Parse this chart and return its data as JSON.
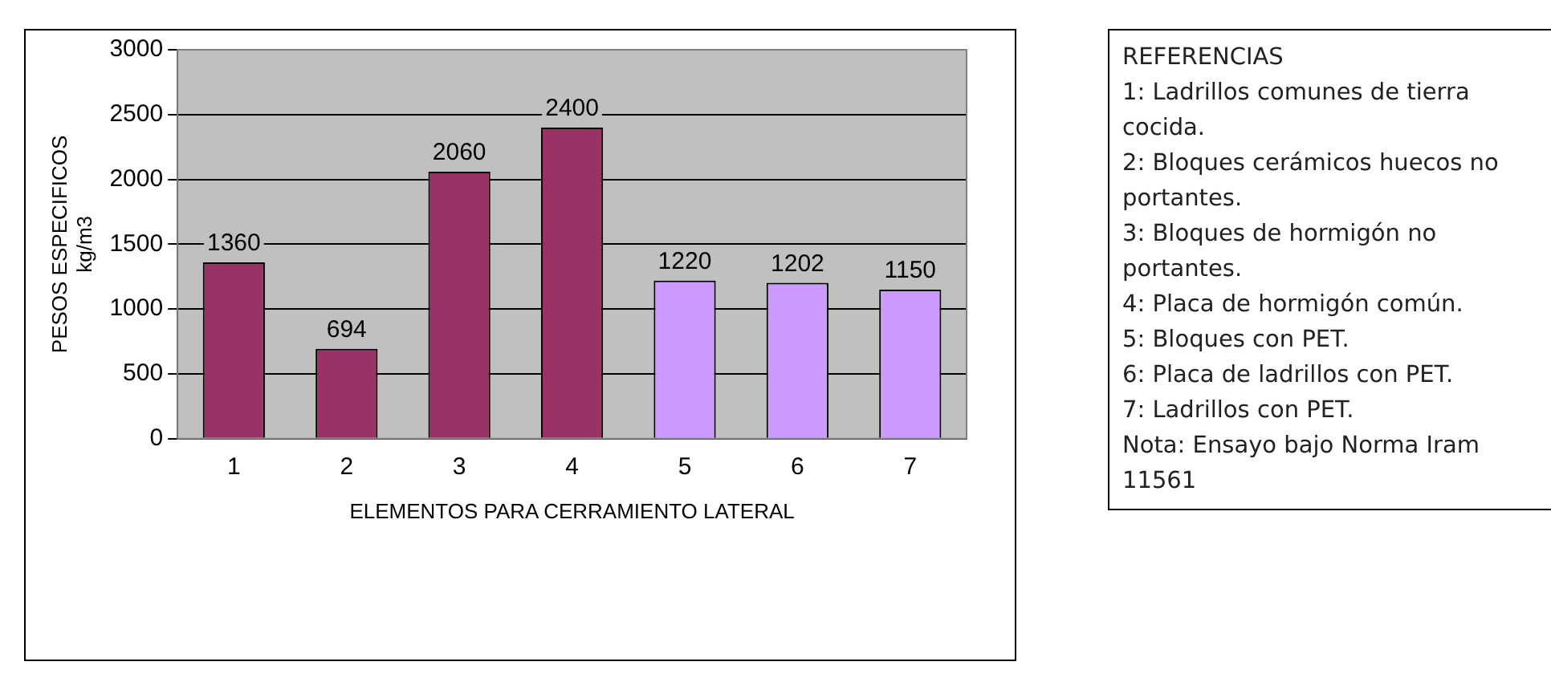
{
  "chart_data": {
    "type": "bar",
    "xlabel": "ELEMENTOS PARA CERRAMIENTO LATERAL",
    "ylabel": "PESOS ESPECIFICOS\nkg/m3",
    "categories": [
      "1",
      "2",
      "3",
      "4",
      "5",
      "6",
      "7"
    ],
    "values": [
      1360,
      694,
      2060,
      2400,
      1220,
      1202,
      1150
    ],
    "colors": [
      "#993366",
      "#993366",
      "#993366",
      "#993366",
      "#cc99ff",
      "#cc99ff",
      "#cc99ff"
    ],
    "ylim": [
      0,
      3000
    ],
    "yticks": [
      0,
      500,
      1000,
      1500,
      2000,
      2500,
      3000
    ],
    "grid": "y",
    "legend": false,
    "data_labels": true,
    "annotations": [
      "REFERENCIAS",
      "1: Ladrillos comunes de tierra cocida.",
      "2: Bloques cerámicos huecos no portantes.",
      "3: Bloques de hormigón no portantes.",
      "4: Placa de hormigón común.",
      "5: Bloques con PET.",
      "6: Placa de ladrillos con PET.",
      "7: Ladrillos con PET.",
      "Nota: Ensayo bajo Norma Iram 11561"
    ]
  }
}
